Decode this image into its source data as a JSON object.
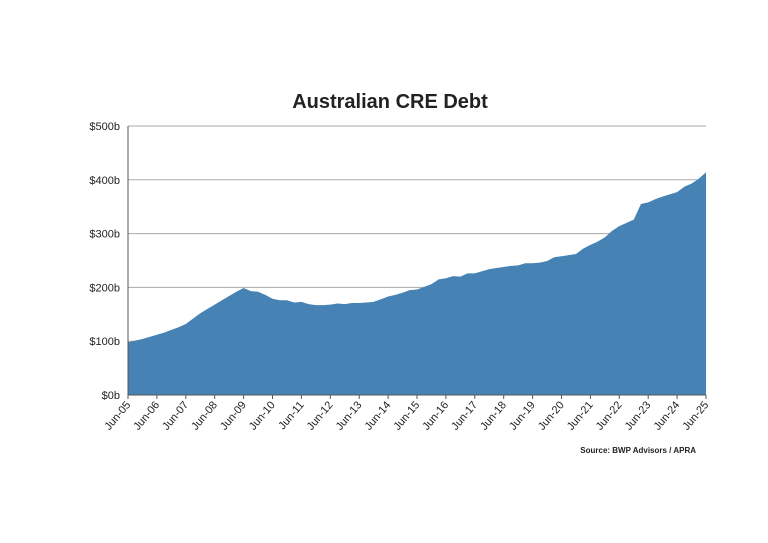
{
  "chart_data": {
    "type": "area",
    "title": "Australian CRE Debt",
    "source": "Source: BWP Advisors / APRA",
    "color": "#4682b4",
    "grid": true,
    "categories": [
      "Jun-05",
      null,
      null,
      null,
      "Jun-06",
      null,
      null,
      null,
      "Jun-07",
      null,
      null,
      null,
      "Jun-08",
      null,
      null,
      null,
      "Jun-09",
      null,
      null,
      null,
      "Jun-10",
      null,
      null,
      null,
      "Jun-11",
      null,
      null,
      null,
      "Jun-12",
      null,
      null,
      null,
      "Jun-13",
      null,
      null,
      null,
      "Jun-14",
      null,
      null,
      null,
      "Jun-15",
      null,
      null,
      null,
      "Jun-16",
      null,
      null,
      null,
      "Jun-17",
      null,
      null,
      null,
      "Jun-18",
      null,
      null,
      null,
      "Jun-19",
      null,
      null,
      null,
      "Jun-20",
      null,
      null,
      null,
      "Jun-21",
      null,
      null,
      null,
      "Jun-22",
      null,
      null,
      null,
      "Jun-23",
      null,
      null,
      null,
      "Jun-24",
      null,
      null,
      null,
      "Jun-25"
    ],
    "values": [
      98,
      101,
      104,
      108,
      112,
      116,
      121,
      126,
      132,
      142,
      152,
      160,
      168,
      176,
      184,
      192,
      199,
      193,
      192,
      186,
      179,
      176,
      176,
      172,
      173,
      169,
      167,
      167,
      168,
      170,
      169,
      171,
      171,
      172,
      173,
      178,
      183,
      186,
      190,
      195,
      196,
      201,
      206,
      215,
      217,
      221,
      220,
      226,
      226,
      230,
      234,
      236,
      238,
      240,
      241,
      245,
      245,
      246,
      249,
      256,
      258,
      260,
      262,
      272,
      279,
      285,
      293,
      305,
      314,
      320,
      326,
      355,
      358,
      364,
      369,
      373,
      377,
      387,
      393,
      402,
      414
    ],
    "ylim": [
      0,
      500
    ],
    "yticks": [
      {
        "value": 0,
        "label": "$0b"
      },
      {
        "value": 100,
        "label": "$100b"
      },
      {
        "value": 200,
        "label": "$200b"
      },
      {
        "value": 300,
        "label": "$300b"
      },
      {
        "value": 400,
        "label": "$400b"
      },
      {
        "value": 500,
        "label": "$500b"
      }
    ]
  }
}
